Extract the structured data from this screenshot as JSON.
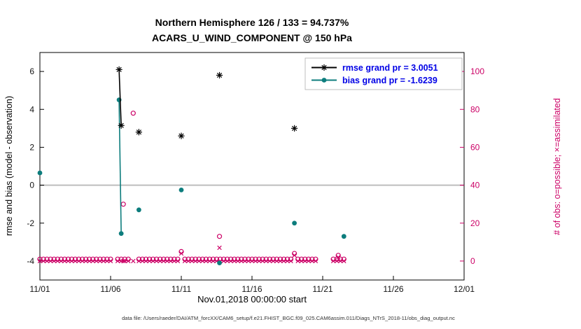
{
  "chart_data": {
    "type": "scatter",
    "title": "Northern Hemisphere 126 / 133 = 94.737%",
    "subtitle": "ACARS_U_WIND_COMPONENT @ 150 hPa",
    "xlabel": "Nov.01,2018 00:00:00 start",
    "ylabel_left": "rmse and bias (model - observation)",
    "ylabel_right": "# of obs: o=possible; ×=assimilated",
    "footer": "data file: /Users/raeder/DAI/ATM_forcXX/CAM6_setup/f.e21.FHIST_BGC.f09_025.CAM6assim.011/Diags_NTrS_2018-11/obs_diag_output.nc",
    "xlim": [
      0,
      30
    ],
    "ylim_left": [
      -5,
      7
    ],
    "ylim_right": [
      -10,
      110
    ],
    "x_ticks": [
      {
        "t": 0,
        "label": "11/01"
      },
      {
        "t": 5,
        "label": "11/06"
      },
      {
        "t": 10,
        "label": "11/11"
      },
      {
        "t": 15,
        "label": "11/16"
      },
      {
        "t": 20,
        "label": "11/21"
      },
      {
        "t": 25,
        "label": "11/26"
      },
      {
        "t": 30,
        "label": "12/01"
      }
    ],
    "y_left_ticks": [
      -4,
      -2,
      0,
      2,
      4,
      6
    ],
    "y_right_ticks": [
      0,
      20,
      40,
      60,
      80,
      100
    ],
    "zero_line": 0,
    "colors": {
      "rmse": "#000000",
      "bias": "#0d7d7d",
      "obs": "#cc0066",
      "legend_text": "#0000e6",
      "zero_line": "#b9b9b9",
      "axis": "#000000"
    },
    "legend": [
      {
        "series": "rmse",
        "label": "rmse grand pr = 3.0051"
      },
      {
        "series": "bias",
        "label": "bias grand pr = -1.6239"
      }
    ],
    "series": {
      "rmse": {
        "marker": "asterisk",
        "grand_pr": 3.0051,
        "segments": [
          [
            [
              5.6,
              6.1
            ],
            [
              5.75,
              3.15
            ]
          ],
          [
            [
              7.0,
              2.8
            ]
          ],
          [
            [
              10.0,
              2.6
            ]
          ],
          [
            [
              12.7,
              5.8
            ]
          ],
          [
            [
              18.0,
              3.0
            ]
          ]
        ]
      },
      "bias": {
        "marker": "dot",
        "grand_pr": -1.6239,
        "segments": [
          [
            [
              0.0,
              0.65
            ]
          ],
          [
            [
              5.6,
              4.5
            ],
            [
              5.75,
              -2.55
            ]
          ],
          [
            [
              7.0,
              -1.3
            ]
          ],
          [
            [
              10.0,
              -0.25
            ]
          ],
          [
            [
              12.7,
              -4.1
            ]
          ],
          [
            [
              18.0,
              -2.0
            ]
          ],
          [
            [
              21.5,
              -2.7
            ]
          ]
        ]
      },
      "obs_bottom_times": [
        0,
        0.25,
        0.5,
        0.75,
        1,
        1.25,
        1.5,
        1.75,
        2,
        2.25,
        2.5,
        2.75,
        3,
        3.25,
        3.5,
        3.75,
        4,
        4.25,
        4.5,
        4.75,
        5,
        5.5,
        5.75,
        6,
        6.25,
        7,
        7.25,
        7.5,
        7.75,
        8,
        8.25,
        8.5,
        8.75,
        9,
        9.25,
        9.5,
        9.75,
        10.25,
        10.5,
        10.75,
        11,
        11.25,
        11.5,
        11.75,
        12,
        12.25,
        12.5,
        12.75,
        13,
        13.25,
        13.5,
        13.75,
        14,
        14.25,
        14.5,
        14.75,
        15,
        15.25,
        15.5,
        15.75,
        16,
        16.25,
        16.5,
        16.75,
        17,
        17.25,
        17.5,
        17.75,
        18.25,
        18.5,
        18.75,
        19,
        19.25,
        19.5,
        20.75,
        21,
        21.25,
        21.5
      ],
      "obs_possible": {
        "marker": "circle",
        "bottom_count": 1,
        "points": [
          [
            5.9,
            30
          ],
          [
            6.6,
            78
          ],
          [
            10.0,
            5
          ],
          [
            12.7,
            13
          ],
          [
            18.0,
            4
          ],
          [
            21.1,
            3
          ]
        ]
      },
      "obs_assimilated": {
        "marker": "cross",
        "bottom_count": 0,
        "points": [
          [
            5.9,
            0
          ],
          [
            6.6,
            0
          ],
          [
            10.0,
            4
          ],
          [
            12.7,
            7
          ],
          [
            18.0,
            3
          ],
          [
            21.1,
            2
          ]
        ]
      }
    }
  }
}
